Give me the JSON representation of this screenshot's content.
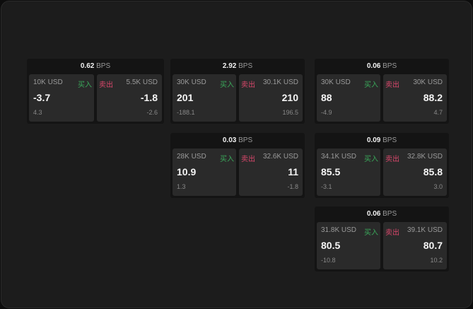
{
  "buy_label": "买入",
  "sell_label": "卖出",
  "unit": "BPS",
  "colors": {
    "buy": "#3aa85a",
    "sell": "#d9476b"
  },
  "tiles": [
    {
      "spread": "0.62",
      "buy": {
        "size": "10K USD",
        "price": "-3.7",
        "change": "4.3"
      },
      "sell": {
        "size": "5.5K USD",
        "price": "-1.8",
        "change": "-2.6"
      }
    },
    {
      "spread": "2.92",
      "buy": {
        "size": "30K USD",
        "price": "201",
        "change": "-188.1"
      },
      "sell": {
        "size": "30.1K USD",
        "price": "210",
        "change": "196.5"
      }
    },
    {
      "spread": "0.06",
      "buy": {
        "size": "30K USD",
        "price": "88",
        "change": "-4.9"
      },
      "sell": {
        "size": "30K USD",
        "price": "88.2",
        "change": "4.7"
      }
    },
    {
      "spread": "0.03",
      "buy": {
        "size": "28K USD",
        "price": "10.9",
        "change": "1.3"
      },
      "sell": {
        "size": "32.6K USD",
        "price": "11",
        "change": "-1.8"
      }
    },
    {
      "spread": "0.09",
      "buy": {
        "size": "34.1K USD",
        "price": "85.5",
        "change": "-3.1"
      },
      "sell": {
        "size": "32.8K USD",
        "price": "85.8",
        "change": "3.0"
      }
    },
    {
      "spread": "0.06",
      "buy": {
        "size": "31.8K USD",
        "price": "80.5",
        "change": "-10.8"
      },
      "sell": {
        "size": "39.1K USD",
        "price": "80.7",
        "change": "10.2"
      }
    }
  ]
}
